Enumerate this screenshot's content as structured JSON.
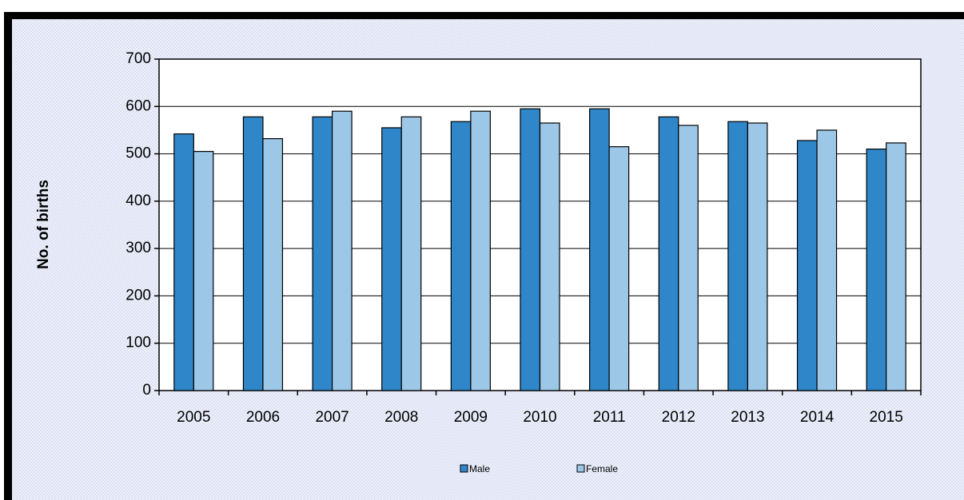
{
  "chart_data": {
    "type": "bar",
    "title": "",
    "xlabel": "",
    "ylabel": "No. of births",
    "ylim": [
      0,
      700
    ],
    "yticks": [
      0,
      100,
      200,
      300,
      400,
      500,
      600,
      700
    ],
    "categories": [
      "2005",
      "2006",
      "2007",
      "2008",
      "2009",
      "2010",
      "2011",
      "2012",
      "2013",
      "2014",
      "2015"
    ],
    "series": [
      {
        "name": "Male",
        "color": "#2F86C9",
        "values": [
          542,
          578,
          578,
          555,
          568,
          595,
          595,
          578,
          568,
          528,
          510
        ]
      },
      {
        "name": "Female",
        "color": "#9DC7E6",
        "values": [
          505,
          532,
          590,
          578,
          590,
          565,
          515,
          560,
          565,
          550,
          523
        ]
      }
    ],
    "gridlines": "major-y",
    "legend_position": "bottom"
  }
}
